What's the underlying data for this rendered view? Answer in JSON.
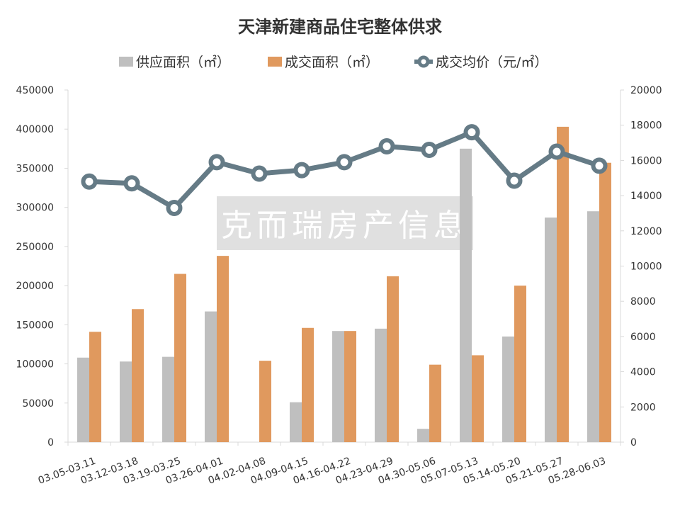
{
  "chart_data": {
    "type": "bar+line",
    "title": "天津新建商品住宅整体供求",
    "watermark": "克而瑞房产信息",
    "categories": [
      "03.05-03.11",
      "03.12-03.18",
      "03.19-03.25",
      "03.26-04.01",
      "04.02-04.08",
      "04.09-04.15",
      "04.16-04.22",
      "04.23-04.29",
      "04.30-05.06",
      "05.07-05.13",
      "05.14-05.20",
      "05.21-05.27",
      "05.28-06.03"
    ],
    "series": [
      {
        "name": "供应面积（㎡）",
        "type": "bar",
        "axis": "left",
        "color": "#bfbfbf",
        "values": [
          108000,
          103000,
          109000,
          167000,
          0,
          51000,
          142000,
          145000,
          17000,
          375000,
          135000,
          287000,
          295000
        ]
      },
      {
        "name": "成交面积（㎡）",
        "type": "bar",
        "axis": "left",
        "color": "#e0995e",
        "values": [
          141000,
          170000,
          215000,
          238000,
          104000,
          146000,
          142000,
          212000,
          99000,
          111000,
          200000,
          403000,
          357000
        ]
      },
      {
        "name": "成交均价（元/㎡）",
        "type": "line",
        "axis": "right",
        "color": "#657b86",
        "values": [
          14800,
          14700,
          13300,
          15900,
          15250,
          15450,
          15900,
          16800,
          16600,
          17600,
          14850,
          16500,
          15700
        ]
      }
    ],
    "y_left": {
      "min": 0,
      "max": 450000,
      "ticks": [
        "0",
        "50000",
        "100000",
        "150000",
        "200000",
        "250000",
        "300000",
        "350000",
        "400000",
        "450000"
      ]
    },
    "y_right": {
      "min": 0,
      "max": 20000,
      "ticks": [
        "0",
        "2000",
        "4000",
        "6000",
        "8000",
        "10000",
        "12000",
        "14000",
        "16000",
        "18000",
        "20000"
      ]
    },
    "grid": false,
    "legend": "top"
  }
}
